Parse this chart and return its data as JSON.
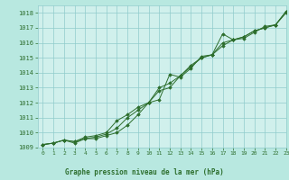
{
  "title": "Graphe pression niveau de la mer (hPa)",
  "bg_color": "#b8e8e0",
  "plot_bg_color": "#d0f0ec",
  "grid_color": "#90cccc",
  "line_color": "#2d6e2d",
  "marker_color": "#2d6e2d",
  "xlim": [
    -0.5,
    23
  ],
  "ylim": [
    1009,
    1018.5
  ],
  "yticks": [
    1009,
    1010,
    1011,
    1012,
    1013,
    1014,
    1015,
    1016,
    1017,
    1018
  ],
  "xticks": [
    0,
    1,
    2,
    3,
    4,
    5,
    6,
    7,
    8,
    9,
    10,
    11,
    12,
    13,
    14,
    15,
    16,
    17,
    18,
    19,
    20,
    21,
    22,
    23
  ],
  "series1_x": [
    0,
    1,
    2,
    3,
    4,
    5,
    6,
    7,
    8,
    9,
    10,
    11,
    12,
    13,
    14,
    15,
    16,
    17,
    18,
    19,
    20,
    21,
    22,
    23
  ],
  "series1_y": [
    1009.2,
    1009.3,
    1009.5,
    1009.4,
    1009.6,
    1009.7,
    1009.9,
    1010.3,
    1011.0,
    1011.5,
    1012.0,
    1012.2,
    1013.9,
    1013.7,
    1014.3,
    1015.1,
    1015.2,
    1016.6,
    1016.2,
    1016.3,
    1016.7,
    1017.1,
    1017.2,
    1018.0
  ],
  "series2_x": [
    0,
    1,
    2,
    3,
    4,
    5,
    6,
    7,
    8,
    9,
    10,
    11,
    12,
    13,
    14,
    15,
    16,
    17,
    18,
    19,
    20,
    21,
    22,
    23
  ],
  "series2_y": [
    1009.2,
    1009.3,
    1009.5,
    1009.3,
    1009.6,
    1009.6,
    1009.8,
    1010.0,
    1010.5,
    1011.2,
    1012.0,
    1013.0,
    1013.3,
    1013.8,
    1014.5,
    1015.0,
    1015.2,
    1016.0,
    1016.2,
    1016.4,
    1016.8,
    1017.0,
    1017.2,
    1018.1
  ],
  "series3_x": [
    0,
    1,
    2,
    3,
    4,
    5,
    6,
    7,
    8,
    9,
    10,
    11,
    12,
    13,
    14,
    15,
    16,
    17,
    18,
    19,
    20,
    21,
    22,
    23
  ],
  "series3_y": [
    1009.2,
    1009.3,
    1009.5,
    1009.4,
    1009.7,
    1009.8,
    1010.0,
    1010.8,
    1011.2,
    1011.7,
    1012.0,
    1012.8,
    1013.0,
    1013.8,
    1014.4,
    1015.0,
    1015.2,
    1015.8,
    1016.2,
    1016.4,
    1016.8,
    1017.0,
    1017.2,
    1018.1
  ]
}
